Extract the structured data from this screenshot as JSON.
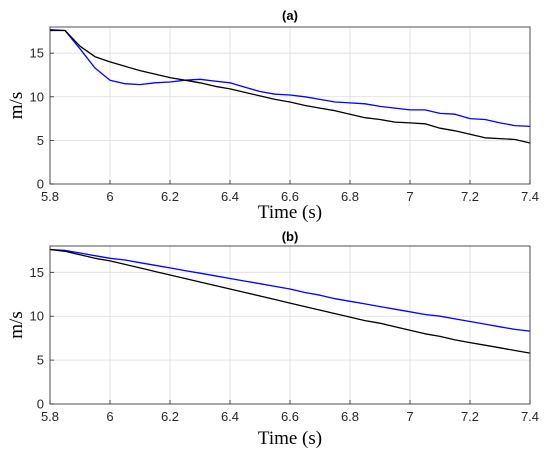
{
  "chart_data": [
    {
      "type": "line",
      "title": "(a)",
      "xlabel": "Time (s)",
      "ylabel": "m/s",
      "xlim": [
        5.8,
        7.4
      ],
      "ylim": [
        0,
        18
      ],
      "xticks": [
        5.8,
        6,
        6.2,
        6.4,
        6.6,
        6.8,
        7,
        7.2,
        7.4
      ],
      "xtick_labels": [
        "5.8",
        "6",
        "6.2",
        "6.4",
        "6.6",
        "6.8",
        "7",
        "7.2",
        "7.4"
      ],
      "yticks": [
        0,
        5,
        10,
        15
      ],
      "ytick_labels": [
        "0",
        "5",
        "10",
        "15"
      ],
      "grid": true,
      "series": [
        {
          "color": "#0000ff",
          "x": [
            5.8,
            5.85,
            5.9,
            5.95,
            6.0,
            6.05,
            6.1,
            6.15,
            6.2,
            6.25,
            6.3,
            6.35,
            6.4,
            6.45,
            6.5,
            6.55,
            6.6,
            6.65,
            6.7,
            6.75,
            6.8,
            6.85,
            6.9,
            6.95,
            7.0,
            7.05,
            7.1,
            7.15,
            7.2,
            7.25,
            7.3,
            7.35,
            7.4
          ],
          "y": [
            17.7,
            17.6,
            15.5,
            13.3,
            11.9,
            11.5,
            11.4,
            11.6,
            11.7,
            11.9,
            12.0,
            11.8,
            11.6,
            11.1,
            10.6,
            10.3,
            10.2,
            10.0,
            9.7,
            9.4,
            9.3,
            9.2,
            8.9,
            8.7,
            8.5,
            8.5,
            8.1,
            8.0,
            7.5,
            7.4,
            7.0,
            6.7,
            6.6
          ]
        },
        {
          "color": "#000000",
          "x": [
            5.8,
            5.85,
            5.9,
            5.95,
            6.0,
            6.05,
            6.1,
            6.15,
            6.2,
            6.25,
            6.3,
            6.35,
            6.4,
            6.45,
            6.5,
            6.55,
            6.6,
            6.65,
            6.7,
            6.75,
            6.8,
            6.85,
            6.9,
            6.95,
            7.0,
            7.05,
            7.1,
            7.15,
            7.2,
            7.25,
            7.3,
            7.35,
            7.4
          ],
          "y": [
            17.6,
            17.6,
            15.8,
            14.6,
            14.0,
            13.5,
            13.0,
            12.6,
            12.2,
            11.9,
            11.6,
            11.2,
            10.9,
            10.5,
            10.1,
            9.7,
            9.4,
            9.0,
            8.7,
            8.4,
            8.0,
            7.6,
            7.4,
            7.1,
            7.0,
            6.9,
            6.4,
            6.1,
            5.7,
            5.3,
            5.2,
            5.1,
            4.7
          ]
        }
      ]
    },
    {
      "type": "line",
      "title": "(b)",
      "xlabel": "Time (s)",
      "ylabel": "m/s",
      "xlim": [
        5.8,
        7.4
      ],
      "ylim": [
        0,
        18
      ],
      "xticks": [
        5.8,
        6,
        6.2,
        6.4,
        6.6,
        6.8,
        7,
        7.2,
        7.4
      ],
      "xtick_labels": [
        "5.8",
        "6",
        "6.2",
        "6.4",
        "6.6",
        "6.8",
        "7",
        "7.2",
        "7.4"
      ],
      "yticks": [
        0,
        5,
        10,
        15
      ],
      "ytick_labels": [
        "0",
        "5",
        "10",
        "15"
      ],
      "grid": true,
      "series": [
        {
          "color": "#0000ff",
          "x": [
            5.8,
            5.85,
            5.9,
            5.95,
            6.0,
            6.05,
            6.1,
            6.15,
            6.2,
            6.25,
            6.3,
            6.35,
            6.4,
            6.45,
            6.5,
            6.55,
            6.6,
            6.65,
            6.7,
            6.75,
            6.8,
            6.85,
            6.9,
            6.95,
            7.0,
            7.05,
            7.1,
            7.15,
            7.2,
            7.25,
            7.3,
            7.35,
            7.4
          ],
          "y": [
            17.6,
            17.5,
            17.2,
            16.9,
            16.6,
            16.4,
            16.1,
            15.8,
            15.5,
            15.2,
            14.9,
            14.6,
            14.3,
            14.0,
            13.7,
            13.4,
            13.1,
            12.7,
            12.4,
            12.0,
            11.7,
            11.4,
            11.1,
            10.8,
            10.5,
            10.2,
            10.0,
            9.7,
            9.4,
            9.1,
            8.8,
            8.5,
            8.3
          ]
        },
        {
          "color": "#000000",
          "x": [
            5.8,
            5.85,
            5.9,
            5.95,
            6.0,
            6.05,
            6.1,
            6.15,
            6.2,
            6.25,
            6.3,
            6.35,
            6.4,
            6.45,
            6.5,
            6.55,
            6.6,
            6.65,
            6.7,
            6.75,
            6.8,
            6.85,
            6.9,
            6.95,
            7.0,
            7.05,
            7.1,
            7.15,
            7.2,
            7.25,
            7.3,
            7.35,
            7.4
          ],
          "y": [
            17.6,
            17.4,
            17.0,
            16.6,
            16.3,
            15.9,
            15.5,
            15.1,
            14.7,
            14.3,
            13.9,
            13.5,
            13.1,
            12.7,
            12.3,
            11.9,
            11.5,
            11.1,
            10.7,
            10.3,
            9.9,
            9.5,
            9.2,
            8.8,
            8.4,
            8.0,
            7.7,
            7.3,
            7.0,
            6.7,
            6.4,
            6.1,
            5.8
          ]
        }
      ]
    }
  ]
}
